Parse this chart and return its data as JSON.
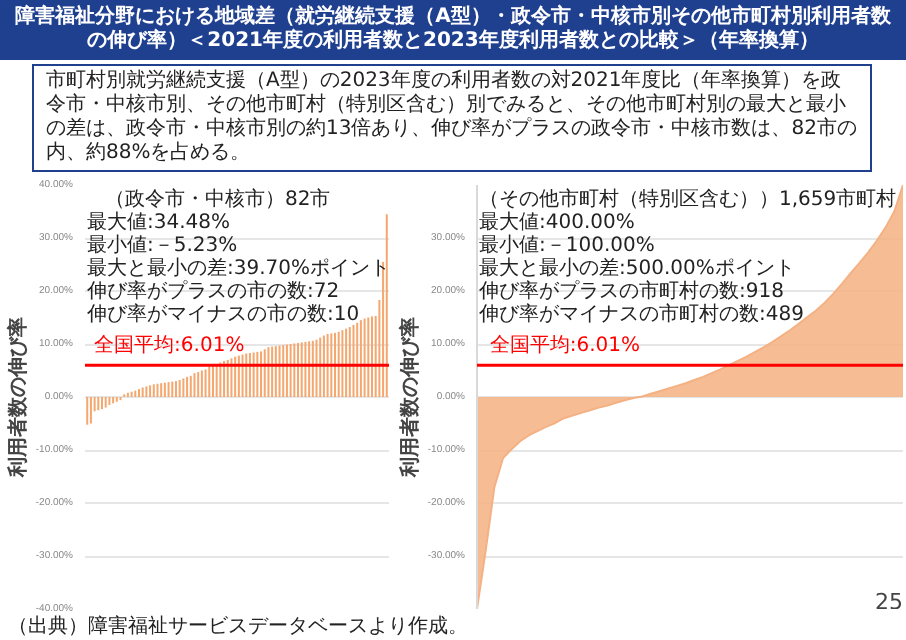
{
  "chart_data": [
    {
      "type": "bar",
      "title": "障害福祉分野における地域差（就労継続支援（A型）・政令市・中核市別その他市町村別利用者数の伸び率）＜2021年度の利用者数と2023年度利用者数との比較＞（年率換算）",
      "subtitle": "市町村別就労継続支援（A型）の2023年度の利用者数の対2021年度比（年率換算）を政令市・中核市別、その他市町村（特別区含む）別でみると、その他市町村別の最大と最小の差は、政令市・中核市別の約13倍あり、伸び率がプラスの政令市・中核市数は、82市の内、約88%を占める。",
      "categories": [
        null,
        null,
        null,
        null,
        null,
        null,
        null,
        null,
        null,
        null,
        null,
        null,
        null,
        null,
        null,
        null,
        null,
        null,
        null,
        null,
        null,
        null,
        null,
        null,
        null,
        null,
        null,
        null,
        null,
        null,
        null,
        null,
        null,
        null,
        null,
        null,
        null,
        null,
        null,
        null,
        null,
        null,
        null,
        null,
        null,
        null,
        null,
        null,
        null,
        null,
        null,
        null,
        null,
        null,
        null,
        null,
        null,
        null,
        null,
        null,
        null,
        null,
        null,
        null,
        null,
        null,
        null,
        null,
        null,
        null,
        null,
        null,
        null,
        null,
        null,
        null,
        null,
        null,
        null,
        null,
        null,
        null
      ],
      "values": [
        -5.23,
        -5.0,
        -2.7,
        -2.5,
        -2.3,
        -2.0,
        -1.5,
        -1.2,
        -0.9,
        -0.6,
        0.5,
        0.8,
        1.0,
        1.2,
        1.5,
        1.8,
        2.0,
        2.2,
        2.4,
        2.5,
        2.6,
        2.7,
        2.8,
        2.9,
        3.0,
        3.2,
        3.5,
        3.8,
        4.0,
        4.5,
        4.7,
        5.0,
        5.2,
        5.8,
        6.0,
        6.2,
        6.5,
        6.8,
        7.0,
        7.3,
        7.6,
        7.8,
        8.0,
        8.2,
        8.3,
        8.4,
        8.5,
        8.6,
        9.0,
        9.4,
        9.5,
        9.6,
        9.7,
        9.8,
        9.9,
        10.0,
        10.1,
        10.2,
        10.3,
        10.4,
        10.5,
        10.6,
        10.8,
        11.2,
        11.6,
        11.9,
        12.0,
        12.1,
        12.3,
        12.6,
        12.9,
        13.2,
        13.6,
        14.0,
        14.5,
        14.8,
        15.0,
        15.2,
        15.3,
        18.3,
        25.5,
        34.48
      ],
      "color": "#f4a870",
      "ylim": [
        -40,
        40
      ],
      "yticks": [
        {
          "value": -40,
          "label": "-40.00%"
        },
        {
          "value": -30,
          "label": "-30.00%"
        },
        {
          "value": -20,
          "label": "-20.00%"
        },
        {
          "value": -10,
          "label": "-10.00%"
        },
        {
          "value": 0,
          "label": "0.00%"
        },
        {
          "value": 10,
          "label": "10.00%"
        },
        {
          "value": 20,
          "label": "20.00%"
        },
        {
          "value": 30,
          "label": "30.00%"
        },
        {
          "value": 40,
          "label": "40.00%"
        }
      ],
      "grid": "y",
      "tick_labels": "y",
      "ylabel": "利用者数の伸び率",
      "ref_lines": [
        {
          "axis": "y",
          "value": 6.01,
          "label": "全国平均:6.01%",
          "color": "#ff0000"
        }
      ],
      "annotations": [
        "（政令市・中核市）82市",
        "最大値:34.48%",
        "最小値:－5.23%",
        "最大と最小の差:39.70%ポイント",
        "伸び率がプラスの市の数:72",
        "伸び率がマイナスの市の数:10",
        "（出典）障害福祉サービスデータベースより作成。"
      ]
    },
    {
      "type": "area",
      "categories": [
        null,
        null,
        null,
        null,
        null,
        null,
        null,
        null,
        null,
        null,
        null,
        null,
        null,
        null,
        null,
        null,
        null,
        null,
        null,
        null,
        null,
        null,
        null,
        null,
        null,
        null,
        null,
        null,
        null,
        null,
        null,
        null,
        null,
        null,
        null,
        null,
        null,
        null,
        null,
        null,
        null,
        null,
        null,
        null,
        null,
        null,
        null,
        null,
        null,
        null
      ],
      "values": [
        -40,
        -29,
        -17,
        -11.5,
        -9.8,
        -8.3,
        -7.2,
        -6.4,
        -5.6,
        -4.9,
        -4.0,
        -3.5,
        -3.0,
        -2.5,
        -2.0,
        -1.6,
        -1.1,
        -0.6,
        -0.2,
        0.1,
        0.6,
        1.1,
        1.6,
        2.1,
        2.6,
        3.2,
        3.8,
        4.5,
        5.2,
        6.0,
        6.8,
        7.6,
        8.5,
        9.4,
        10.4,
        11.5,
        12.6,
        13.8,
        15.1,
        16.3,
        17.8,
        19.5,
        21.4,
        23.4,
        25.3,
        27.3,
        29.5,
        32,
        35,
        40
      ],
      "color": "#f4b183",
      "ylim": [
        -40,
        40
      ],
      "yticks": [
        {
          "value": -30,
          "label": "-30.00%"
        },
        {
          "value": -20,
          "label": "-20.00%"
        },
        {
          "value": -10,
          "label": "-10.00%"
        },
        {
          "value": 0,
          "label": "0.00%"
        },
        {
          "value": 10,
          "label": "10.00%"
        },
        {
          "value": 20,
          "label": "20.00%"
        },
        {
          "value": 30,
          "label": "30.00%"
        }
      ],
      "grid": "y",
      "tick_labels": "y",
      "ylabel": "利用者数の伸び率",
      "ref_lines": [
        {
          "axis": "y",
          "value": 6.01,
          "label": "全国平均:6.01%",
          "color": "#ff0000"
        }
      ],
      "annotations": [
        "（その他市町村（特別区含む））1,659市町村",
        "最大値:400.00%",
        "最小値:－100.00%",
        "最大と最小の差:500.00%ポイント",
        "伸び率がプラスの市町村の数:918",
        "伸び率がマイナスの市町村の数:489",
        "25"
      ]
    }
  ]
}
